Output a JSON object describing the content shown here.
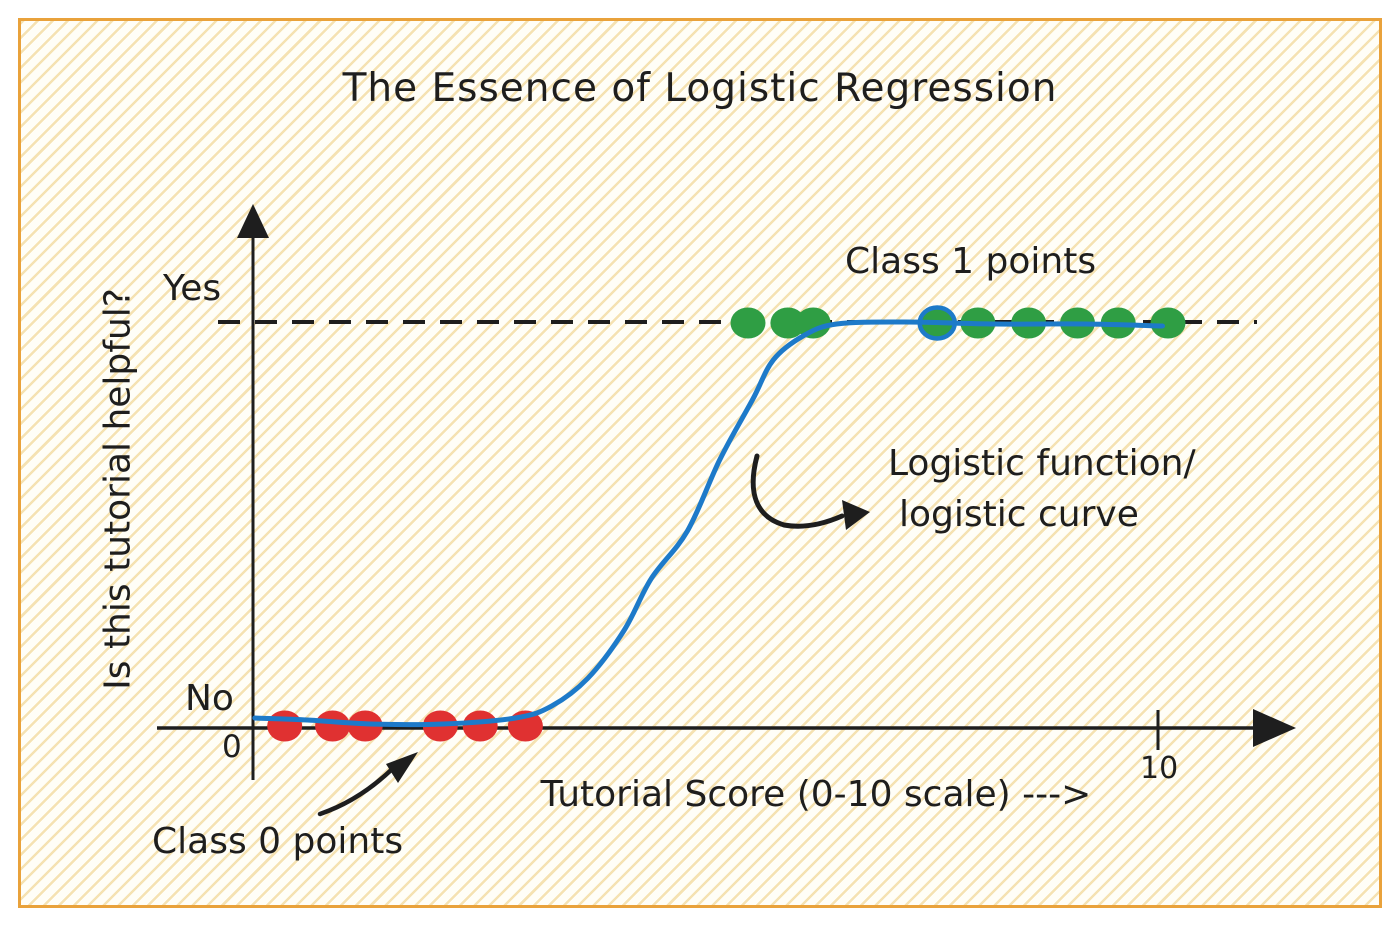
{
  "frame": {
    "border_color": "#e9a23b",
    "stripe_color": "#ebc66e",
    "bg_color": "#fffef7"
  },
  "title": "The Essence of Logistic Regression",
  "axes": {
    "y_label": "Is this tutorial helpful?",
    "x_label": "Tutorial Score (0-10 scale) --->",
    "y_tick_yes": "Yes",
    "y_tick_no": "No",
    "x_tick_origin": "0",
    "x_tick_ten": "10"
  },
  "annotations": {
    "class1_label": "Class 1 points",
    "class0_label": "Class 0 points",
    "curve_label_line1": "Logistic function/",
    "curve_label_line2": "logistic curve"
  },
  "colors": {
    "class0_dot": "#e03131",
    "class1_dot": "#2f9e44",
    "curve": "#1d7ac9",
    "ink": "#1e1e1e"
  },
  "chart_data": {
    "type": "scatter",
    "title": "The Essence of Logistic Regression",
    "xlabel": "Tutorial Score (0-10 scale) --->",
    "ylabel": "Is this tutorial helpful?",
    "x_range": [
      0,
      10
    ],
    "y_levels": {
      "No": 0,
      "Yes": 1
    },
    "x_ticks": [
      {
        "value": 0,
        "label": "0"
      },
      {
        "value": 10,
        "label": "10"
      }
    ],
    "grid": false,
    "legend_position": "none",
    "series": [
      {
        "name": "Class 0 points",
        "class": 0,
        "color": "#e03131",
        "y": 0,
        "x": [
          0.35,
          0.88,
          1.24,
          2.07,
          2.51,
          3.01
        ]
      },
      {
        "name": "Class 1 points",
        "class": 1,
        "color": "#2f9e44",
        "y": 1,
        "x": [
          5.47,
          5.91,
          6.19,
          7.56,
          8.01,
          8.57,
          9.11,
          9.56,
          10.11
        ],
        "ring_index": 3,
        "ring_color": "#1d7ac9"
      }
    ],
    "curve": {
      "name": "Logistic function / logistic curve",
      "color": "#1d7ac9",
      "points": [
        [
          0.02,
          0.01
        ],
        [
          0.6,
          0.005
        ],
        [
          1.3,
          -0.005
        ],
        [
          2.1,
          -0.005
        ],
        [
          2.9,
          0.01
        ],
        [
          3.3,
          0.04
        ],
        [
          3.7,
          0.11
        ],
        [
          4.1,
          0.23
        ],
        [
          4.4,
          0.36
        ],
        [
          4.8,
          0.48
        ],
        [
          5.16,
          0.66
        ],
        [
          5.52,
          0.81
        ],
        [
          5.75,
          0.91
        ],
        [
          6.08,
          0.97
        ],
        [
          6.45,
          1.0
        ],
        [
          7.2,
          1.005
        ],
        [
          8.2,
          1.0
        ],
        [
          9.2,
          1.0
        ],
        [
          10.05,
          0.995
        ]
      ]
    }
  }
}
